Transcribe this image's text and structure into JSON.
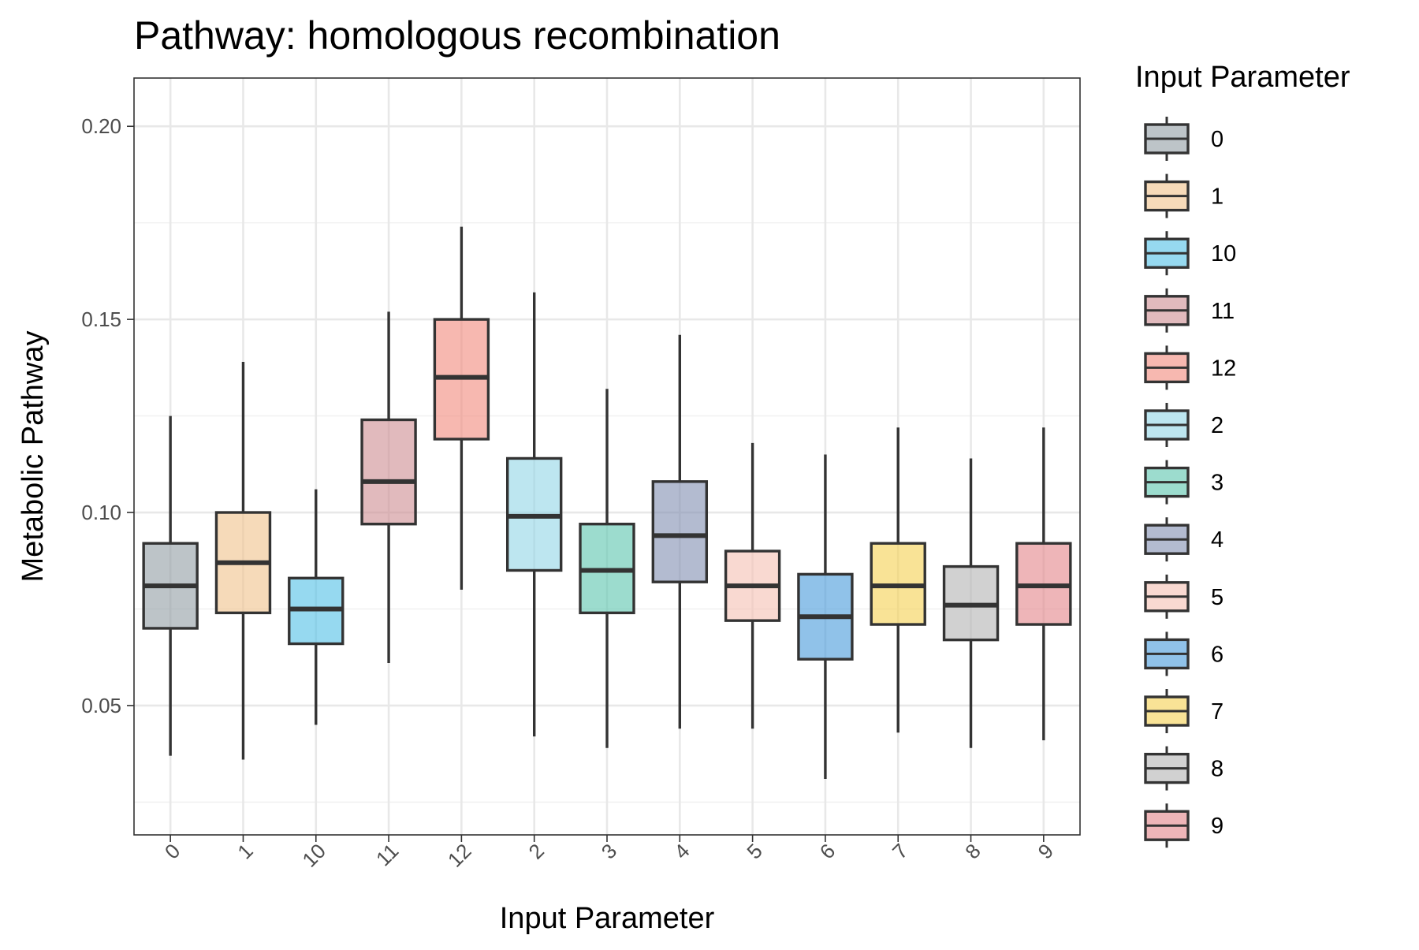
{
  "chart_data": {
    "type": "box",
    "title": "Pathway: homologous recombination",
    "xlabel": "Input Parameter",
    "ylabel": "Metabolic Pathway",
    "ylim": [
      0.0165,
      0.2125
    ],
    "yticks": [
      0.05,
      0.1,
      0.15,
      0.2
    ],
    "ytick_labels": [
      "0.05",
      "0.10",
      "0.15",
      "0.20"
    ],
    "grid": true,
    "legend": {
      "title": "Input Parameter",
      "placement": "right"
    },
    "categories": [
      "0",
      "1",
      "10",
      "11",
      "12",
      "2",
      "3",
      "4",
      "5",
      "6",
      "7",
      "8",
      "9"
    ],
    "boxes": [
      {
        "category": "0",
        "color": "#95A0A6",
        "whisker_low": 0.037,
        "q1": 0.07,
        "median": 0.081,
        "q3": 0.092,
        "whisker_high": 0.125
      },
      {
        "category": "1",
        "color": "#F0C48E",
        "whisker_low": 0.036,
        "q1": 0.074,
        "median": 0.087,
        "q3": 0.1,
        "whisker_high": 0.139
      },
      {
        "category": "10",
        "color": "#56C1E6",
        "whisker_low": 0.045,
        "q1": 0.066,
        "median": 0.075,
        "q3": 0.083,
        "whisker_high": 0.106
      },
      {
        "category": "11",
        "color": "#CF8F95",
        "whisker_low": 0.061,
        "q1": 0.097,
        "median": 0.108,
        "q3": 0.124,
        "whisker_high": 0.152
      },
      {
        "category": "12",
        "color": "#F28D80",
        "whisker_low": 0.08,
        "q1": 0.119,
        "median": 0.135,
        "q3": 0.15,
        "whisker_high": 0.174
      },
      {
        "category": "2",
        "color": "#94D6E6",
        "whisker_low": 0.042,
        "q1": 0.085,
        "median": 0.099,
        "q3": 0.114,
        "whisker_high": 0.157
      },
      {
        "category": "3",
        "color": "#5FC7B0",
        "whisker_low": 0.039,
        "q1": 0.074,
        "median": 0.085,
        "q3": 0.097,
        "whisker_high": 0.132
      },
      {
        "category": "4",
        "color": "#8591B3",
        "whisker_low": 0.044,
        "q1": 0.082,
        "median": 0.094,
        "q3": 0.108,
        "whisker_high": 0.146
      },
      {
        "category": "5",
        "color": "#F6C2B5",
        "whisker_low": 0.044,
        "q1": 0.072,
        "median": 0.081,
        "q3": 0.09,
        "whisker_high": 0.118
      },
      {
        "category": "6",
        "color": "#4C9CDC",
        "whisker_low": 0.031,
        "q1": 0.062,
        "median": 0.073,
        "q3": 0.084,
        "whisker_high": 0.115
      },
      {
        "category": "7",
        "color": "#F5D256",
        "whisker_low": 0.043,
        "q1": 0.071,
        "median": 0.081,
        "q3": 0.092,
        "whisker_high": 0.122
      },
      {
        "category": "8",
        "color": "#B5B5B5",
        "whisker_low": 0.039,
        "q1": 0.067,
        "median": 0.076,
        "q3": 0.086,
        "whisker_high": 0.114
      },
      {
        "category": "9",
        "color": "#E4878C",
        "whisker_low": 0.041,
        "q1": 0.071,
        "median": 0.081,
        "q3": 0.092,
        "whisker_high": 0.122
      }
    ]
  }
}
